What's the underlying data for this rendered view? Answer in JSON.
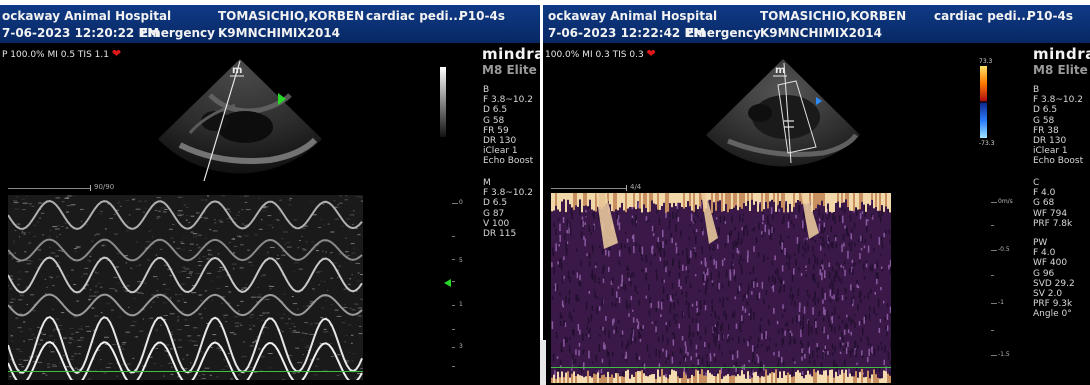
{
  "left": {
    "hospital": "ockaway Animal Hospital",
    "patient": "TOMASICHIO,KORBEN",
    "exam": "cardiac pedi...",
    "probe": "P10-4s",
    "datetime": "7-06-2023 12:20:22 PM",
    "mode": "Emergency",
    "patient_id": "K9MNCHIMIX2014",
    "status": "P 100.0%  MI 0.5  TIS 1.1",
    "brand": "mindray",
    "model": "M8 Elite",
    "b_params": "B\nF 3.8~10.2\nD 6.5\nG 58\nFR 59\nDR 130\niClear 1\nEcho Boost",
    "m_params": "M\nF 3.8~10.2\nD 6.5\nG 87\nV 100\nDR 115",
    "sweep_label": "90/90",
    "depth_ticks": [
      "0",
      "5",
      "1",
      "3"
    ]
  },
  "right": {
    "hospital": "ockaway Animal Hospital",
    "patient": "TOMASICHIO,KORBEN",
    "exam": "cardiac pedi...",
    "probe": "P10-4s",
    "datetime": "7-06-2023 12:22:42 PM",
    "mode": "Emergency",
    "patient_id": "K9MNCHIMIX2014",
    "status": "100.0%  MI 0.3  TIS 0.3",
    "brand": "mindray",
    "model": "M8 Elite",
    "color_max": "73.3",
    "color_min": "-73.3",
    "b_params": "B\nF 3.8~10.2\nD 6.5\nG 58\nFR 38\nDR 130\niClear 1\nEcho Boost",
    "c_params": "C\nF 4.0\nG 68\nWF 794\nPRF 7.8k",
    "pw_params": "PW\nF 4.0\nWF 400\nG 96\nSVD 29.2\nSV 2.0\nPRF 9.3k\nAngle 0°",
    "sweep_label": "4/4",
    "velocity_ticks": [
      "0m/s",
      "-0.5",
      "-1",
      "-1.5"
    ]
  },
  "colors": {
    "header_bg": "#0b2f73",
    "heart": "#e01818",
    "doppler_bg": "#3a1848",
    "baseline": "#3fbf3f"
  }
}
